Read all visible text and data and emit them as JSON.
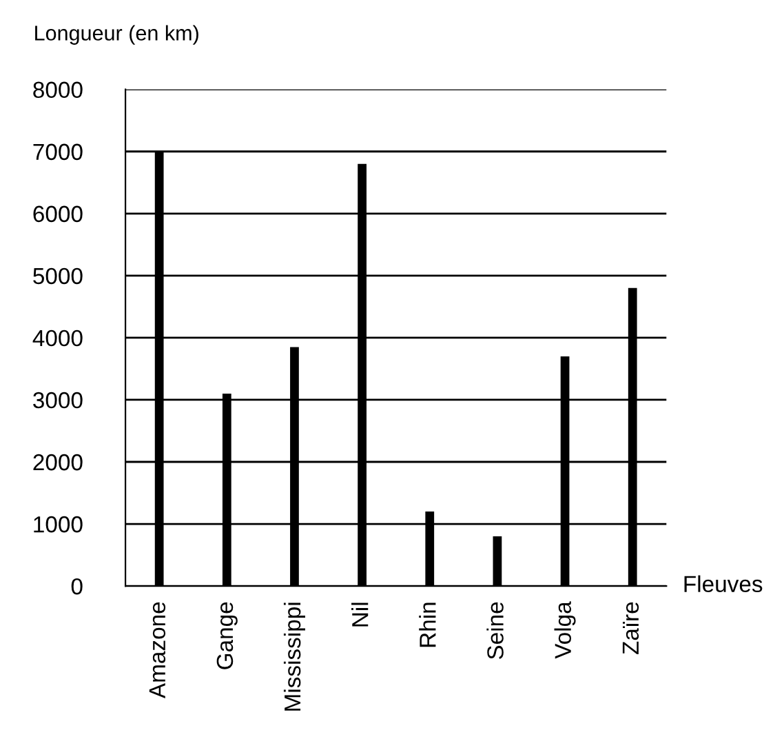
{
  "chart_data": {
    "type": "bar",
    "categories": [
      "Amazone",
      "Gange",
      "Mississippi",
      "Nil",
      "Rhin",
      "Seine",
      "Volga",
      "Zaïre"
    ],
    "values": [
      7000,
      3100,
      3850,
      6800,
      1200,
      800,
      3700,
      4800
    ],
    "color": "#000000",
    "ylabel": "Longueur (en km)",
    "xlabel": "Fleuves",
    "ylim": [
      0,
      8000
    ],
    "yticks": [
      0,
      1000,
      2000,
      3000,
      4000,
      5000,
      6000,
      7000,
      8000
    ],
    "grid": "y"
  }
}
